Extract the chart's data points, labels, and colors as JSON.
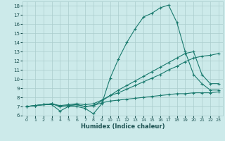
{
  "xlabel": "Humidex (Indice chaleur)",
  "bg_color": "#cceaea",
  "grid_color": "#aacccc",
  "line_color": "#1a7a6e",
  "xlim": [
    -0.5,
    23.5
  ],
  "ylim": [
    6,
    18.5
  ],
  "xticks": [
    0,
    1,
    2,
    3,
    4,
    5,
    6,
    7,
    8,
    9,
    10,
    11,
    12,
    13,
    14,
    15,
    16,
    17,
    18,
    19,
    20,
    21,
    22,
    23
  ],
  "yticks": [
    6,
    7,
    8,
    9,
    10,
    11,
    12,
    13,
    14,
    15,
    16,
    17,
    18
  ],
  "series": [
    {
      "x": [
        0,
        1,
        2,
        3,
        4,
        5,
        6,
        7,
        8,
        9,
        10,
        11,
        12,
        13,
        14,
        15,
        16,
        17,
        18,
        19,
        20,
        21,
        22,
        23
      ],
      "y": [
        7.0,
        7.1,
        7.2,
        7.2,
        6.5,
        7.0,
        7.0,
        6.8,
        6.2,
        7.3,
        10.1,
        12.2,
        14.0,
        15.5,
        16.8,
        17.2,
        17.8,
        18.1,
        16.2,
        13.0,
        10.5,
        9.5,
        8.8,
        8.8
      ]
    },
    {
      "x": [
        0,
        1,
        2,
        3,
        4,
        5,
        6,
        7,
        8,
        9,
        10,
        11,
        12,
        13,
        14,
        15,
        16,
        17,
        18,
        19,
        20,
        21,
        22,
        23
      ],
      "y": [
        7.0,
        7.1,
        7.2,
        7.3,
        7.0,
        7.1,
        7.2,
        7.0,
        7.1,
        7.6,
        8.2,
        8.8,
        9.3,
        9.8,
        10.3,
        10.8,
        11.3,
        11.8,
        12.3,
        12.8,
        13.0,
        10.5,
        9.5,
        9.5
      ]
    },
    {
      "x": [
        0,
        1,
        2,
        3,
        4,
        5,
        6,
        7,
        8,
        9,
        10,
        11,
        12,
        13,
        14,
        15,
        16,
        17,
        18,
        19,
        20,
        21,
        22,
        23
      ],
      "y": [
        7.0,
        7.1,
        7.2,
        7.3,
        7.1,
        7.2,
        7.3,
        7.2,
        7.3,
        7.7,
        8.2,
        8.5,
        8.9,
        9.3,
        9.7,
        10.1,
        10.5,
        11.0,
        11.4,
        11.9,
        12.3,
        12.5,
        12.6,
        12.8
      ]
    },
    {
      "x": [
        0,
        1,
        2,
        3,
        4,
        5,
        6,
        7,
        8,
        9,
        10,
        11,
        12,
        13,
        14,
        15,
        16,
        17,
        18,
        19,
        20,
        21,
        22,
        23
      ],
      "y": [
        7.0,
        7.1,
        7.2,
        7.3,
        7.0,
        7.1,
        7.2,
        7.0,
        7.1,
        7.4,
        7.6,
        7.7,
        7.8,
        7.9,
        8.0,
        8.1,
        8.2,
        8.3,
        8.4,
        8.4,
        8.5,
        8.5,
        8.5,
        8.6
      ]
    }
  ]
}
